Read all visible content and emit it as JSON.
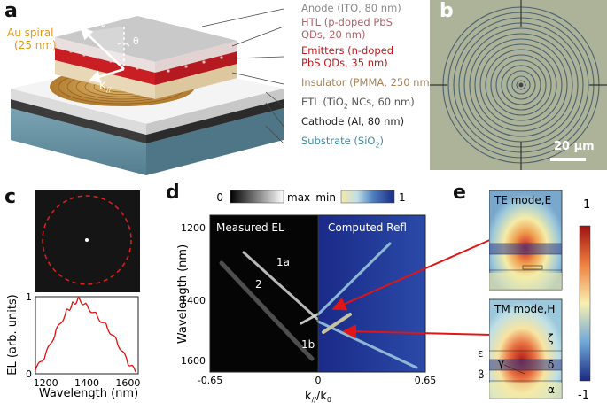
{
  "panel_a": {
    "letter": "a",
    "au_spiral": "Au spiral",
    "au_thickness": "(25 nm)",
    "k0": "k",
    "k0_sub": "0",
    "theta": "θ",
    "kpar": "k",
    "kpar_sub": "//",
    "layers": {
      "anode": "Anode (ITO, 80 nm)",
      "htl_1": "HTL (p-doped PbS",
      "htl_2": "QDs, 20 nm)",
      "emit_1": "Emitters (n-doped",
      "emit_2": "PbS QDs, 35 nm)",
      "insulator": "Insulator (PMMA, 250 nm)",
      "etl_pre": "ETL (TiO",
      "etl_sub": "2",
      "etl_post": " NCs, 60 nm)",
      "cathode": "Cathode (Al, 80 nm)",
      "substrate_pre": "Substrate (SiO",
      "substrate_sub": "2",
      "substrate_post": ")"
    },
    "colors": {
      "anode": "#8a8a8a",
      "htl": "#b0626a",
      "emitters": "#c0181c",
      "insulator": "#a7855a",
      "etl": "#555555",
      "cathode": "#222222",
      "substrate": "#3f8aa3",
      "au": "#e0a020"
    }
  },
  "panel_b": {
    "letter": "b",
    "scale": "20 μm"
  },
  "panel_c": {
    "letter": "c",
    "ylabel": "EL (arb. units)",
    "xlabel": "Wavelength (nm)",
    "xticks": [
      "1200",
      "1400",
      "1600"
    ],
    "yticks": [
      "0",
      "1"
    ]
  },
  "panel_d": {
    "letter": "d",
    "ylabel": "Wavelength (nm)",
    "xlabel_pre": "k",
    "xlabel_sub": "//",
    "xlabel_mid": "/k",
    "xlabel_sub2": "0",
    "xticks": [
      "-0.65",
      "0",
      "0.65"
    ],
    "yticks": [
      "1200",
      "1400",
      "1600"
    ],
    "left_title": "Measured EL",
    "right_title": "Computed   Refl",
    "cb1_min": "0",
    "cb1_max": "max",
    "cb2_min": "min",
    "cb2_max": "1",
    "mode_1a": "1a",
    "mode_2": "2",
    "mode_1b": "1b"
  },
  "panel_e": {
    "letter": "e",
    "te_title": "TE mode,E",
    "tm_title": "TM mode,H",
    "cb_max": "1",
    "cb_min": "-1",
    "layer_labels": {
      "alpha": "α",
      "beta": "β",
      "gamma": "γ",
      "delta": "δ",
      "epsilon": "ε",
      "zeta": "ζ"
    }
  },
  "chart_data": {
    "type": "line",
    "x": [
      1150,
      1200,
      1250,
      1300,
      1330,
      1360,
      1400,
      1450,
      1500,
      1550,
      1600,
      1640
    ],
    "values": [
      0.05,
      0.25,
      0.55,
      0.8,
      0.9,
      0.97,
      0.88,
      0.75,
      0.6,
      0.4,
      0.15,
      0.02
    ],
    "xlabel": "Wavelength (nm)",
    "ylabel": "EL (arb. units)",
    "xlim": [
      1150,
      1650
    ],
    "ylim": [
      0,
      1
    ]
  }
}
